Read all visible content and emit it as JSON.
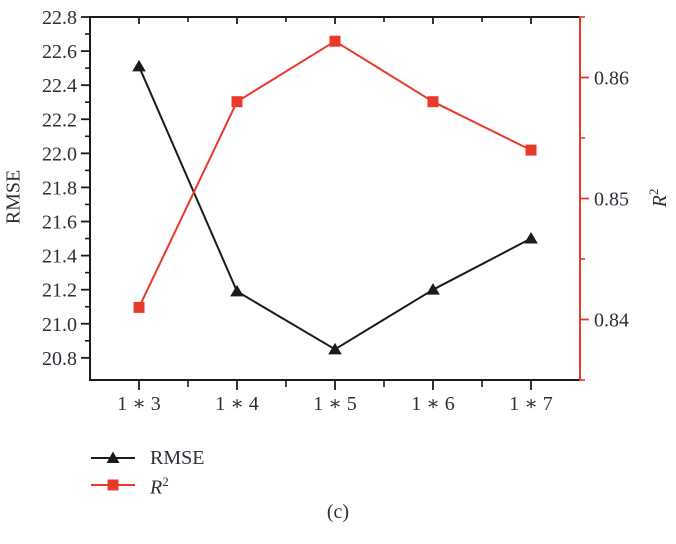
{
  "caption": "(c)",
  "colors": {
    "background": "#ffffff",
    "text": "#2f2f3a",
    "rmse_series": "#1b1b1b",
    "r2_series": "#e8392b"
  },
  "axes": {
    "left": {
      "label": "RMSE",
      "tick_labels": [
        "22.8",
        "22.6",
        "22.4",
        "22.2",
        "22.0",
        "21.8",
        "21.6",
        "21.4",
        "21.2",
        "21.0",
        "20.8"
      ]
    },
    "right": {
      "label_base": "R",
      "label_sup": "2",
      "tick_labels": [
        "0.86",
        "0.85",
        "0.84"
      ]
    },
    "x": {
      "tick_labels": [
        "1 ∗ 3",
        "1 ∗ 4",
        "1 ∗ 5",
        "1 ∗ 6",
        "1 ∗ 7"
      ]
    }
  },
  "legend": {
    "entries": [
      {
        "label": "RMSE",
        "marker": "triangle",
        "color": "#1b1b1b"
      },
      {
        "label_base": "R",
        "label_sup": "2",
        "marker": "square",
        "color": "#e8392b"
      }
    ]
  },
  "chart_data": {
    "type": "line",
    "title": "",
    "categories": [
      "1 ∗ 3",
      "1 ∗ 4",
      "1 ∗ 5",
      "1 ∗ 6",
      "1 ∗ 7"
    ],
    "series": [
      {
        "name": "RMSE",
        "axis": "left",
        "marker": "triangle",
        "color": "#1b1b1b",
        "values": [
          22.51,
          21.19,
          20.85,
          21.2,
          21.5
        ]
      },
      {
        "name": "R^2",
        "axis": "right",
        "marker": "square",
        "color": "#e8392b",
        "values": [
          0.841,
          0.858,
          0.863,
          0.858,
          0.854
        ]
      }
    ],
    "ylabel_left": "RMSE",
    "ylabel_right": "R^2",
    "ylim_left": [
      20.67,
      22.8
    ],
    "ylim_right": [
      0.835,
      0.865
    ],
    "left_major_ticks": [
      22.8,
      22.6,
      22.4,
      22.2,
      22.0,
      21.8,
      21.6,
      21.4,
      21.2,
      21.0,
      20.8
    ],
    "left_minor_ticks": [
      22.7,
      22.5,
      22.3,
      22.1,
      21.9,
      21.7,
      21.5,
      21.3,
      21.1,
      20.9
    ],
    "right_major_ticks": [
      0.86,
      0.85,
      0.84
    ],
    "right_minor_ticks": [
      0.865,
      0.855,
      0.845,
      0.835
    ],
    "grid": false,
    "legend_position": "bottom-left"
  }
}
